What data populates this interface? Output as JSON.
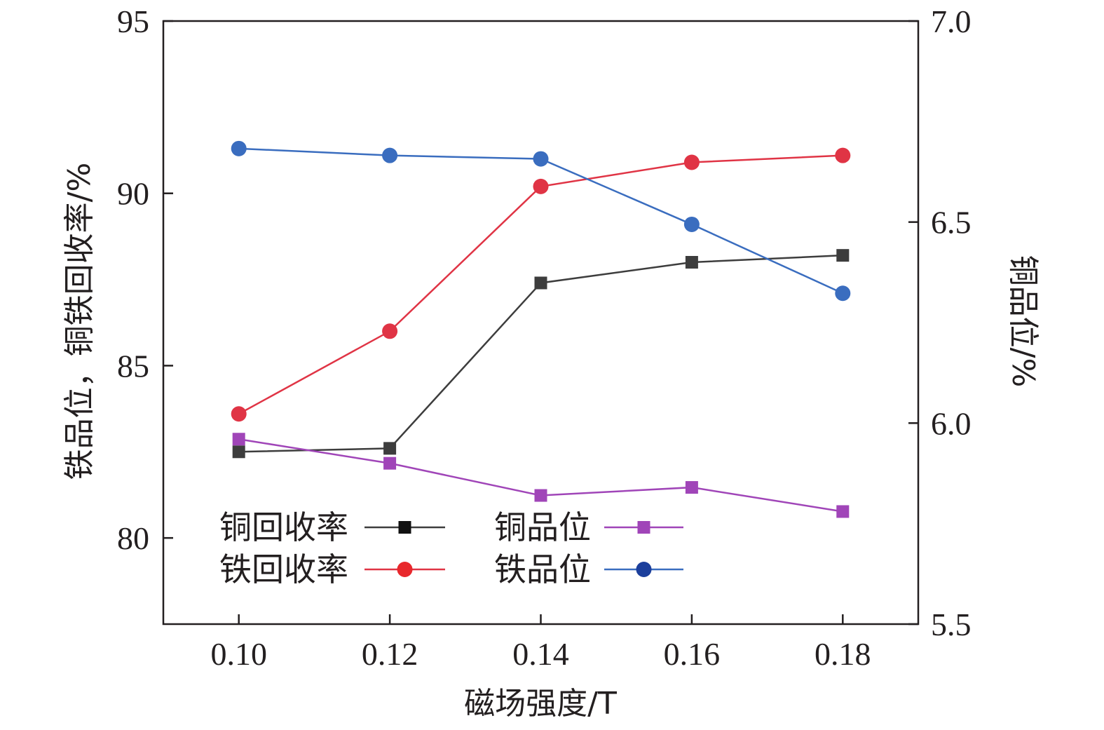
{
  "chart_data": {
    "type": "line",
    "xlabel": "磁场强度/T",
    "ylabel_left": "铁品位，铜铁回收率/%",
    "ylabel_right": "铜品位/%",
    "x": [
      0.1,
      0.12,
      0.14,
      0.16,
      0.18
    ],
    "x_tick_labels": [
      "0.10",
      "0.12",
      "0.14",
      "0.16",
      "0.18"
    ],
    "xlim": [
      0.09,
      0.19
    ],
    "ylim_left": [
      77.5,
      95
    ],
    "ylim_right": [
      5.5,
      7.0
    ],
    "y_left_ticks": [
      80,
      85,
      90,
      95
    ],
    "y_left_tick_labels": [
      "80",
      "85",
      "90",
      "95"
    ],
    "y_right_ticks": [
      5.5,
      6.0,
      6.5,
      7.0
    ],
    "y_right_tick_labels": [
      "5.5",
      "6.0",
      "6.5",
      "7.0"
    ],
    "grid": false,
    "legend_position": "bottom-left",
    "series": [
      {
        "name": "铜回收率",
        "axis": "left",
        "marker": "square",
        "color": "#3d3d3d",
        "marker_color": "#3d3d3d",
        "legend_marker_color": "#111111",
        "values": [
          82.5,
          82.6,
          87.4,
          88.0,
          88.2
        ]
      },
      {
        "name": "铁回收率",
        "axis": "left",
        "marker": "circle",
        "color": "#e03445",
        "marker_color": "#e03445",
        "legend_marker_color": "#e8282c",
        "values": [
          83.6,
          86.0,
          90.2,
          90.9,
          91.1
        ]
      },
      {
        "name": "铜品位",
        "axis": "right",
        "marker": "square",
        "color": "#a045b8",
        "marker_color": "#a045b8",
        "legend_marker_color": "#a045b8",
        "values": [
          5.96,
          5.9,
          5.82,
          5.84,
          5.78
        ]
      },
      {
        "name": "铁品位",
        "axis": "left",
        "marker": "circle",
        "color": "#3a6dbf",
        "marker_color": "#3a6dbf",
        "legend_marker_color": "#1c3f9c",
        "values": [
          91.3,
          91.1,
          91.0,
          89.1,
          87.1
        ]
      }
    ]
  }
}
